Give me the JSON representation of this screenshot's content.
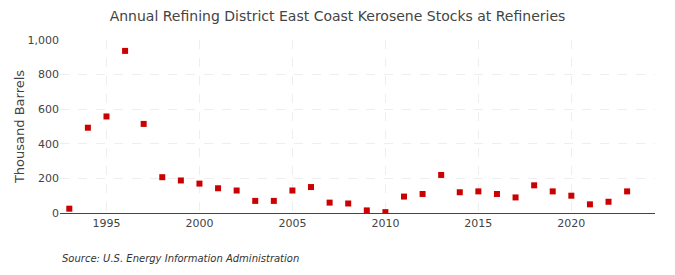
{
  "chart_data": {
    "type": "scatter",
    "title": "Annual Refining District East Coast Kerosene Stocks at Refineries",
    "ylabel": "Thousand Barrels",
    "annotations": [
      "Source: U.S. Energy Information Administration"
    ],
    "x": [
      1993,
      1994,
      1995,
      1996,
      1997,
      1998,
      1999,
      2000,
      2001,
      2002,
      2003,
      2004,
      2005,
      2006,
      2007,
      2008,
      2009,
      2010,
      2011,
      2012,
      2013,
      2014,
      2015,
      2016,
      2017,
      2018,
      2019,
      2020,
      2021,
      2022,
      2023
    ],
    "values": [
      25,
      493,
      558,
      937,
      515,
      207,
      188,
      170,
      143,
      130,
      70,
      70,
      130,
      150,
      60,
      55,
      15,
      5,
      95,
      110,
      220,
      120,
      125,
      110,
      90,
      160,
      125,
      100,
      50,
      65,
      125
    ],
    "color": "#CC0000",
    "marker": "square",
    "xlim": [
      1992.5,
      2024.5
    ],
    "xticks": [
      1995,
      2000,
      2005,
      2010,
      2015,
      2020
    ],
    "ylim": [
      0,
      1000
    ],
    "yticks": [
      0,
      200,
      400,
      600,
      800,
      {
        "value": 1000,
        "label": "1,000"
      }
    ],
    "grid": true
  }
}
